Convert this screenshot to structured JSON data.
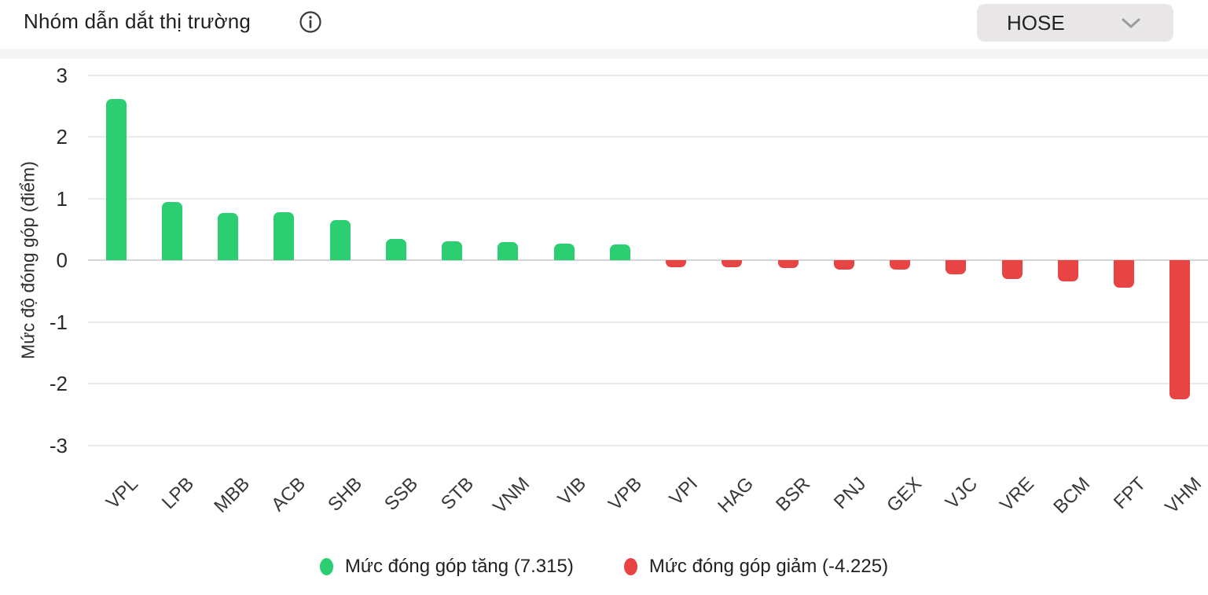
{
  "header": {
    "exchange": {
      "value": "HOSE"
    },
    "info_icon": "info-icon",
    "chevron_icon": "chevron-down-icon"
  },
  "chart_data": {
    "type": "bar",
    "title": "Nhóm dẫn dắt thị trường",
    "ylabel": "Mức độ đóng góp (điểm)",
    "xlabel": "",
    "ylim": [
      -3,
      3
    ],
    "yticks": [
      3,
      2,
      1,
      0,
      -1,
      -2,
      -3
    ],
    "grid": true,
    "legend_position": "bottom",
    "categories": [
      "VPL",
      "LPB",
      "MBB",
      "ACB",
      "SHB",
      "SSB",
      "STB",
      "VNM",
      "VIB",
      "VPB",
      "VPI",
      "HAG",
      "BSR",
      "PNJ",
      "GEX",
      "VJC",
      "VRE",
      "BCM",
      "FPT",
      "VHM"
    ],
    "values": [
      2.61,
      0.94,
      0.77,
      0.78,
      0.65,
      0.35,
      0.3,
      0.29,
      0.27,
      0.26,
      -0.12,
      -0.12,
      -0.13,
      -0.15,
      -0.15,
      -0.23,
      -0.3,
      -0.35,
      -0.44,
      -2.26
    ],
    "colors": {
      "positive": "#2bce70",
      "negative": "#e84444"
    },
    "legend": [
      {
        "label": "Mức đóng góp tăng (7.315)",
        "color": "#2bce70"
      },
      {
        "label": "Mức đóng góp giảm (-4.225)",
        "color": "#e84444"
      }
    ]
  }
}
